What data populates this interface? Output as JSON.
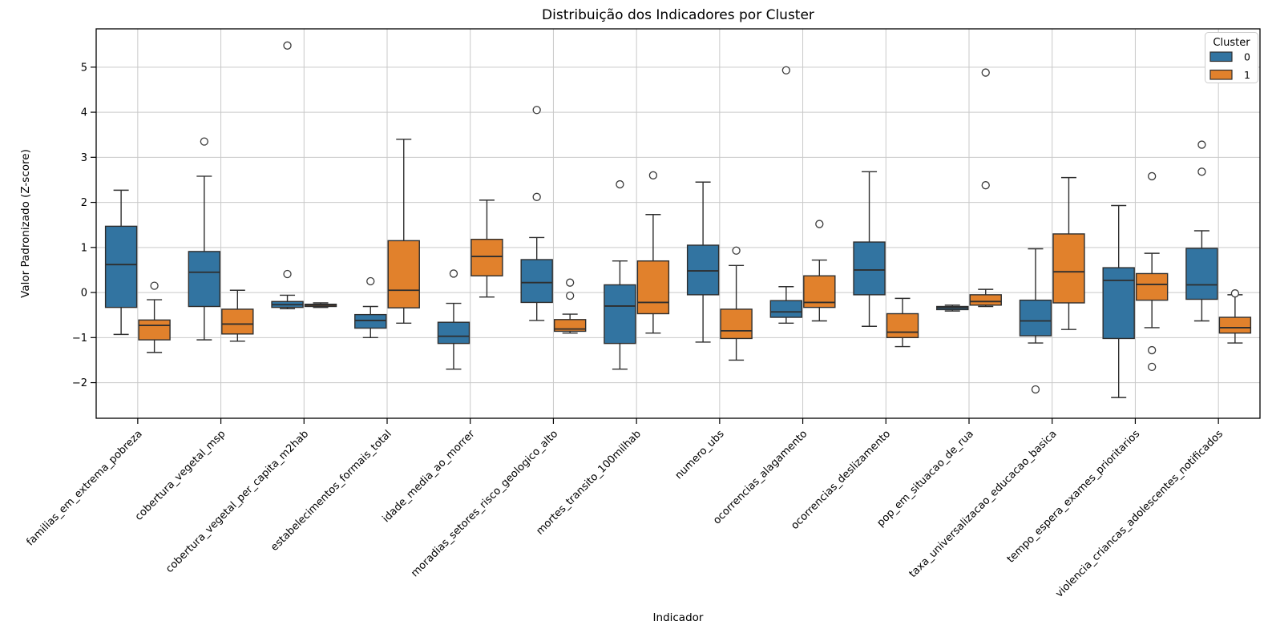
{
  "title": "Distribuição dos Indicadores por Cluster",
  "axes": {
    "x_label": "Indicador",
    "y_label": "Valor Padronizado (Z-score)"
  },
  "legend": {
    "title": "Cluster",
    "entries": [
      {
        "label": "0",
        "color": "#3274a1"
      },
      {
        "label": "1",
        "color": "#e1812c"
      }
    ]
  },
  "colors": {
    "cluster0": "#3274a1",
    "cluster1": "#e1812c",
    "box_edge": "#2e2e2e",
    "grid": "#c9c9c9",
    "spine": "#000000",
    "flier_edge": "#3b3b3b",
    "legend_border": "#cccccc"
  },
  "chart_data": {
    "type": "boxplot",
    "title": "Distribuição dos Indicadores por Cluster",
    "xlabel": "Indicador",
    "ylabel": "Valor Padronizado (Z-score)",
    "grid": true,
    "legend_position": "upper right",
    "ylim": [
      -2.79,
      5.85
    ],
    "yticks": [
      -2,
      -1,
      0,
      1,
      2,
      3,
      4,
      5
    ],
    "categories": [
      "familias_em_extrema_pobreza",
      "cobertura_vegetal_msp",
      "cobertura_vegetal_per_capita_m2hab",
      "estabelecimentos_formais_total",
      "idade_media_ao_morrer",
      "moradias_setores_risco_geologico_alto",
      "mortes_transito_100milhab",
      "numero_ubs",
      "ocorrencias_alagamento",
      "ocorrencias_deslizamento",
      "pop_em_situacao_de_rua",
      "taxa_universalizacao_educacao_basica",
      "tempo_espera_exames_prioritarios",
      "violencia_criancas_adolescentes_notificados"
    ],
    "series": [
      {
        "name": "0",
        "color": "#3274a1",
        "boxes": [
          {
            "whislo": -0.93,
            "q1": -0.33,
            "med": 0.62,
            "q3": 1.47,
            "whishi": 2.27,
            "fliers": []
          },
          {
            "whislo": -1.05,
            "q1": -0.31,
            "med": 0.45,
            "q3": 0.91,
            "whishi": 2.58,
            "fliers": [
              3.35
            ]
          },
          {
            "whislo": -0.36,
            "q1": -0.33,
            "med": -0.27,
            "q3": -0.2,
            "whishi": -0.06,
            "fliers": [
              5.48,
              0.41
            ]
          },
          {
            "whislo": -1.0,
            "q1": -0.79,
            "med": -0.62,
            "q3": -0.49,
            "whishi": -0.31,
            "fliers": [
              0.25
            ]
          },
          {
            "whislo": -1.7,
            "q1": -1.13,
            "med": -0.97,
            "q3": -0.66,
            "whishi": -0.24,
            "fliers": [
              0.42
            ]
          },
          {
            "whislo": -0.62,
            "q1": -0.22,
            "med": 0.22,
            "q3": 0.73,
            "whishi": 1.22,
            "fliers": [
              4.05,
              2.12
            ]
          },
          {
            "whislo": -1.7,
            "q1": -1.13,
            "med": -0.3,
            "q3": 0.17,
            "whishi": 0.7,
            "fliers": [
              2.4
            ]
          },
          {
            "whislo": -1.1,
            "q1": -0.05,
            "med": 0.48,
            "q3": 1.05,
            "whishi": 2.45,
            "fliers": []
          },
          {
            "whislo": -0.68,
            "q1": -0.55,
            "med": -0.43,
            "q3": -0.18,
            "whishi": 0.13,
            "fliers": [
              4.93
            ]
          },
          {
            "whislo": -0.75,
            "q1": -0.05,
            "med": 0.5,
            "q3": 1.12,
            "whishi": 2.68,
            "fliers": []
          },
          {
            "whislo": -0.41,
            "q1": -0.38,
            "med": -0.34,
            "q3": -0.31,
            "whishi": -0.28,
            "fliers": []
          },
          {
            "whislo": -1.12,
            "q1": -0.96,
            "med": -0.63,
            "q3": -0.17,
            "whishi": 0.97,
            "fliers": [
              -2.15
            ]
          },
          {
            "whislo": -2.33,
            "q1": -1.02,
            "med": 0.27,
            "q3": 0.55,
            "whishi": 1.93,
            "fliers": []
          },
          {
            "whislo": -0.63,
            "q1": -0.15,
            "med": 0.17,
            "q3": 0.98,
            "whishi": 1.37,
            "fliers": [
              3.28,
              2.68
            ]
          }
        ]
      },
      {
        "name": "1",
        "color": "#e1812c",
        "boxes": [
          {
            "whislo": -1.33,
            "q1": -1.05,
            "med": -0.73,
            "q3": -0.61,
            "whishi": -0.16,
            "fliers": [
              0.15
            ]
          },
          {
            "whislo": -1.08,
            "q1": -0.92,
            "med": -0.7,
            "q3": -0.37,
            "whishi": 0.05,
            "fliers": []
          },
          {
            "whislo": -0.33,
            "q1": -0.31,
            "med": -0.28,
            "q3": -0.26,
            "whishi": -0.23,
            "fliers": []
          },
          {
            "whislo": -0.68,
            "q1": -0.34,
            "med": 0.05,
            "q3": 1.15,
            "whishi": 3.4,
            "fliers": []
          },
          {
            "whislo": -0.1,
            "q1": 0.37,
            "med": 0.8,
            "q3": 1.18,
            "whishi": 2.05,
            "fliers": []
          },
          {
            "whislo": -0.9,
            "q1": -0.86,
            "med": -0.81,
            "q3": -0.6,
            "whishi": -0.48,
            "fliers": [
              0.22,
              -0.07
            ]
          },
          {
            "whislo": -0.9,
            "q1": -0.47,
            "med": -0.22,
            "q3": 0.7,
            "whishi": 1.73,
            "fliers": [
              2.6
            ]
          },
          {
            "whislo": -1.5,
            "q1": -1.02,
            "med": -0.85,
            "q3": -0.37,
            "whishi": 0.6,
            "fliers": [
              0.93
            ]
          },
          {
            "whislo": -0.63,
            "q1": -0.33,
            "med": -0.22,
            "q3": 0.37,
            "whishi": 0.72,
            "fliers": [
              1.52
            ]
          },
          {
            "whislo": -1.2,
            "q1": -1.0,
            "med": -0.88,
            "q3": -0.47,
            "whishi": -0.13,
            "fliers": []
          },
          {
            "whislo": -0.31,
            "q1": -0.28,
            "med": -0.2,
            "q3": -0.05,
            "whishi": 0.07,
            "fliers": [
              4.88,
              2.38
            ]
          },
          {
            "whislo": -0.82,
            "q1": -0.23,
            "med": 0.46,
            "q3": 1.3,
            "whishi": 2.55,
            "fliers": []
          },
          {
            "whislo": -0.78,
            "q1": -0.17,
            "med": 0.18,
            "q3": 0.42,
            "whishi": 0.87,
            "fliers": [
              2.58,
              -1.28,
              -1.65
            ]
          },
          {
            "whislo": -1.12,
            "q1": -0.9,
            "med": -0.78,
            "q3": -0.55,
            "whishi": -0.05,
            "fliers": [
              -0.02
            ]
          }
        ]
      }
    ]
  }
}
